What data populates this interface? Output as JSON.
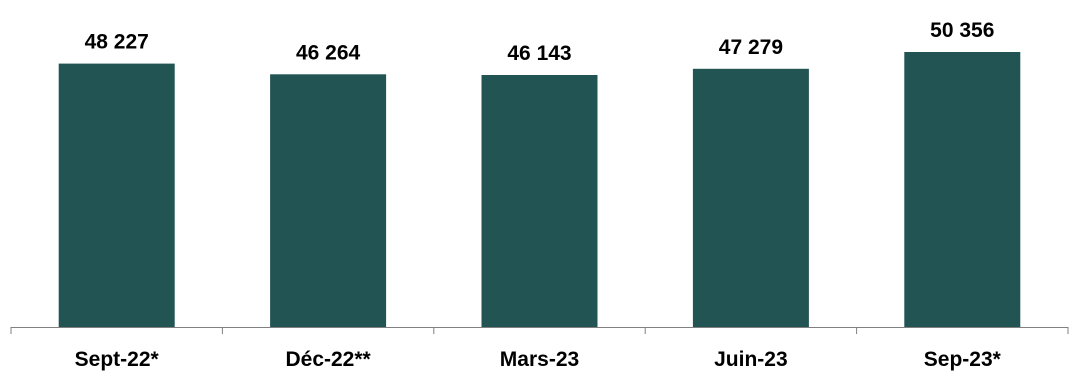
{
  "chart_data": {
    "type": "bar",
    "categories": [
      "Sept-22*",
      "Déc-22**",
      "Mars-23",
      "Juin-23",
      "Sep-23*"
    ],
    "values": [
      48227,
      46264,
      46143,
      47279,
      50356
    ],
    "value_labels": [
      "48 227",
      "46 264",
      "46 143",
      "47 279",
      "50 356"
    ],
    "title": "",
    "xlabel": "",
    "ylabel": "",
    "ylim": [
      0,
      50356
    ],
    "grid": false,
    "legend": "none",
    "colors": {
      "bar": "#225454",
      "axis": "#808080",
      "text": "#000000"
    }
  }
}
